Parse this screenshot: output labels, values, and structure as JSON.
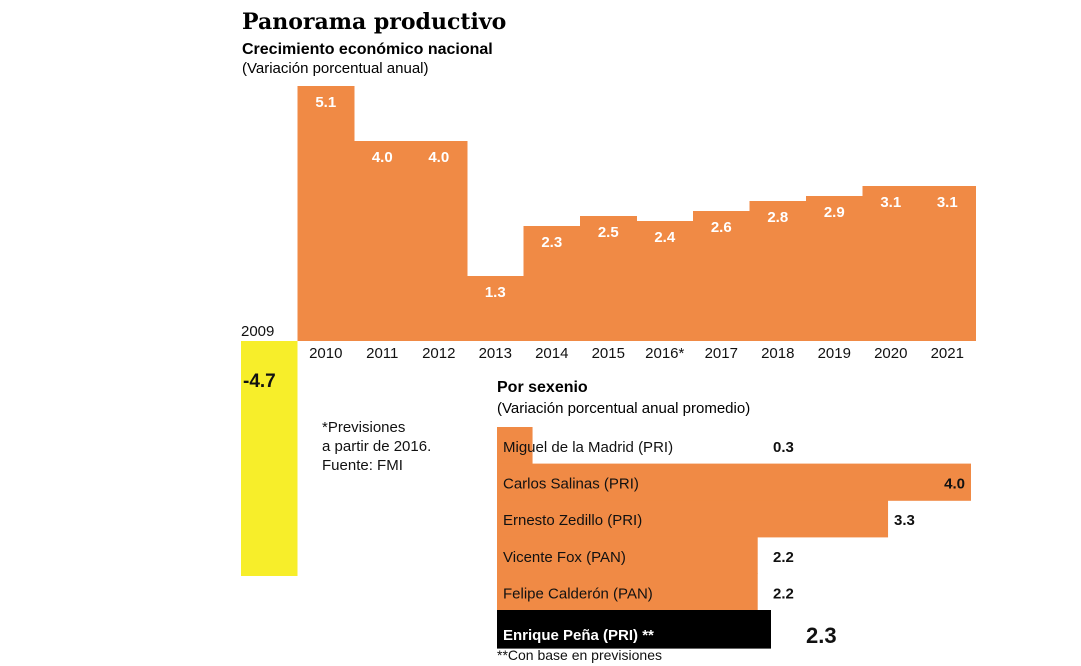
{
  "colors": {
    "orange": "#f08a45",
    "yellow": "#f7ee2a",
    "black": "#000000"
  },
  "header": {
    "title": "Panorama productivo",
    "subtitle": "Crecimiento económico nacional",
    "subtitle_note": "(Variación porcentual anual)"
  },
  "chart_data": [
    {
      "type": "bar",
      "title": "Crecimiento económico nacional",
      "subtitle": "(Variación porcentual anual)",
      "categories": [
        "2009",
        "2010",
        "2011",
        "2012",
        "2013",
        "2014",
        "2015",
        "2016*",
        "2017",
        "2018",
        "2019",
        "2020",
        "2021"
      ],
      "values": [
        -4.7,
        5.1,
        4.0,
        4.0,
        1.3,
        2.3,
        2.5,
        2.4,
        2.6,
        2.8,
        2.9,
        3.1,
        3.1
      ],
      "value_labels": [
        "-4.7",
        "5.1",
        "4.0",
        "4.0",
        "1.3",
        "2.3",
        "2.5",
        "2.4",
        "2.6",
        "2.8",
        "2.9",
        "3.1",
        "3.1"
      ],
      "ylim": [
        -4.7,
        5.1
      ],
      "grid": false
    },
    {
      "type": "bar",
      "orientation": "horizontal",
      "title": "Por sexenio",
      "subtitle": "(Variación porcentual anual promedio)",
      "categories": [
        "Miguel de la Madrid (PRI)",
        "Carlos Salinas (PRI)",
        "Ernesto Zedillo (PRI)",
        "Vicente Fox (PAN)",
        "Felipe Calderón (PAN)",
        "Enrique Peña (PRI) **"
      ],
      "values": [
        0.3,
        4.0,
        3.3,
        2.2,
        2.2,
        2.3
      ],
      "value_labels": [
        "0.3",
        "4.0",
        "3.3",
        "2.2",
        "2.2",
        "2.3"
      ],
      "highlight": "Enrique Peña (PRI) **",
      "xlim": [
        0,
        4.0
      ]
    }
  ],
  "notes": {
    "forecast": [
      "*Previsiones",
      "a partir de 2016."
    ],
    "source": "Fuente: FMI",
    "footnote": "**Con base en previsiones"
  }
}
